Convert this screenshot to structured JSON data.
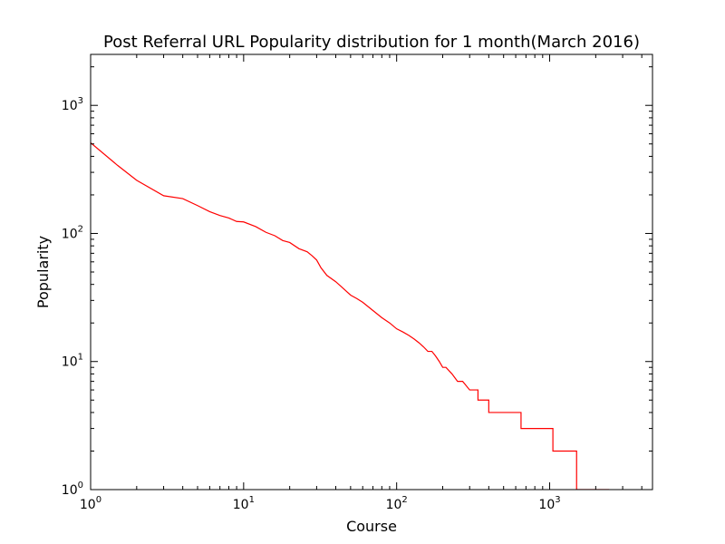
{
  "chart_data": {
    "type": "line",
    "title": "Post Referral URL Popularity distribution for 1 month(March 2016)",
    "xlabel": "Course",
    "ylabel": "Popularity",
    "xscale": "log",
    "yscale": "log",
    "xlim": [
      1,
      4700
    ],
    "ylim": [
      1,
      2500
    ],
    "grid": false,
    "line_color": "#ff0000",
    "x_ticks": [
      {
        "base": "10",
        "exp": "0",
        "value": 1
      },
      {
        "base": "10",
        "exp": "1",
        "value": 10
      },
      {
        "base": "10",
        "exp": "2",
        "value": 100
      },
      {
        "base": "10",
        "exp": "3",
        "value": 1000
      }
    ],
    "y_ticks": [
      {
        "base": "10",
        "exp": "0",
        "value": 1
      },
      {
        "base": "10",
        "exp": "1",
        "value": 10
      },
      {
        "base": "10",
        "exp": "2",
        "value": 100
      },
      {
        "base": "10",
        "exp": "3",
        "value": 1000
      }
    ],
    "series": [
      {
        "x": [
          1,
          1.5,
          2,
          3,
          4,
          5,
          6,
          7,
          8,
          9,
          10,
          12,
          14,
          16,
          18,
          20,
          23,
          26,
          28,
          30,
          32,
          35,
          40,
          45,
          50,
          55,
          60,
          70,
          80,
          90,
          100,
          110,
          120,
          130,
          140,
          150,
          160,
          170,
          180,
          190,
          200,
          210,
          230,
          250,
          270,
          300,
          340,
          400,
          490,
          650,
          1050,
          1500,
          2000,
          2450
        ],
        "y": [
          510,
          340,
          260,
          197,
          187,
          165,
          148,
          138,
          132,
          124,
          123,
          113,
          102,
          96,
          88,
          85,
          76,
          72,
          67,
          62,
          54,
          47,
          42,
          37,
          33,
          31,
          29,
          25,
          22,
          20,
          18,
          17,
          16,
          15,
          14,
          13,
          12,
          12,
          11,
          10,
          9,
          9,
          8,
          7,
          7,
          6,
          5,
          4,
          4,
          3,
          2,
          1,
          1,
          1
        ]
      }
    ]
  }
}
